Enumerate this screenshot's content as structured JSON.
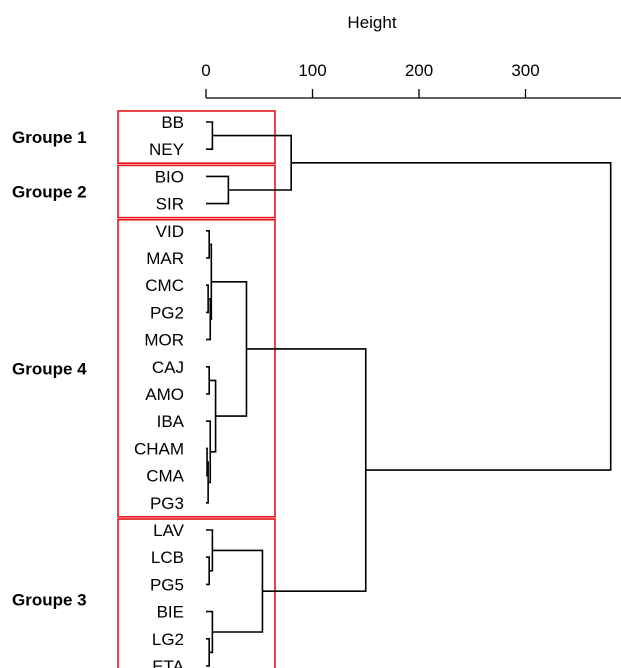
{
  "axis": {
    "title": "Height",
    "ticks": [
      0,
      100,
      200,
      300
    ]
  },
  "leaves": [
    "BB",
    "NEY",
    "BIO",
    "SIR",
    "VID",
    "MAR",
    "CMC",
    "PG2",
    "MOR",
    "CAJ",
    "AMO",
    "IBA",
    "CHAM",
    "CMA",
    "PG3",
    "LAV",
    "LCB",
    "PG5",
    "BIE",
    "LG2",
    "ETA"
  ],
  "groups": [
    {
      "label": "Groupe 1",
      "leaves": [
        "BB",
        "NEY"
      ]
    },
    {
      "label": "Groupe 2",
      "leaves": [
        "BIO",
        "SIR"
      ]
    },
    {
      "label": "Groupe 4",
      "leaves": [
        "VID",
        "MAR",
        "CMC",
        "PG2",
        "MOR",
        "CAJ",
        "AMO",
        "IBA",
        "CHAM",
        "CMA",
        "PG3"
      ]
    },
    {
      "label": "Groupe 3",
      "leaves": [
        "LAV",
        "LCB",
        "PG5",
        "BIE",
        "LG2",
        "ETA"
      ]
    }
  ],
  "colors": {
    "group_box": "#e8141b",
    "tree": "#000000"
  },
  "merges": [
    {
      "children": [
        "VID",
        "MAR"
      ],
      "height": 3
    },
    {
      "children": [
        "CMC",
        "PG2"
      ],
      "height": 2
    },
    {
      "children": [
        [
          "CMC",
          "PG2"
        ],
        "MOR"
      ],
      "height": 4
    },
    {
      "children": [
        [
          "VID",
          "MAR"
        ],
        [
          [
            "CMC",
            "PG2"
          ],
          "MOR"
        ]
      ],
      "height": 5
    },
    {
      "children": [
        "CAJ",
        "AMO"
      ],
      "height": 3
    },
    {
      "children": [
        "CHAM",
        "CMA"
      ],
      "height": 1
    },
    {
      "children": [
        [
          "CHAM",
          "CMA"
        ],
        "PG3"
      ],
      "height": 2
    },
    {
      "children": [
        "IBA",
        [
          [
            "CHAM",
            "CMA"
          ],
          "PG3"
        ]
      ],
      "height": 4
    },
    {
      "children": [
        [
          "CAJ",
          "AMO"
        ],
        [
          "IBA",
          [
            [
              "CHAM",
              "CMA"
            ],
            "PG3"
          ]
        ]
      ],
      "height": 9
    },
    {
      "children": [
        "BB",
        "NEY"
      ],
      "height": 6
    },
    {
      "children": [
        "BIO",
        "SIR"
      ],
      "height": 21
    },
    {
      "children": [
        [
          "BB",
          "NEY"
        ],
        [
          "BIO",
          "SIR"
        ]
      ],
      "height": 80
    },
    {
      "children": [
        "LCB",
        "PG5"
      ],
      "height": 3
    },
    {
      "children": [
        "LAV",
        [
          "LCB",
          "PG5"
        ]
      ],
      "height": 6
    },
    {
      "children": [
        "LG2",
        "ETA"
      ],
      "height": 3
    },
    {
      "children": [
        "BIE",
        [
          "LG2",
          "ETA"
        ]
      ],
      "height": 6
    },
    {
      "children": [
        [
          "LAV",
          [
            "LCB",
            "PG5"
          ]
        ],
        [
          "BIE",
          [
            "LG2",
            "ETA"
          ]
        ]
      ],
      "height": 53
    },
    {
      "children": [
        "groupe4",
        "groupe3"
      ],
      "height": 150
    },
    {
      "children": [
        "groupes12",
        "groupes34"
      ],
      "height": 380
    }
  ]
}
